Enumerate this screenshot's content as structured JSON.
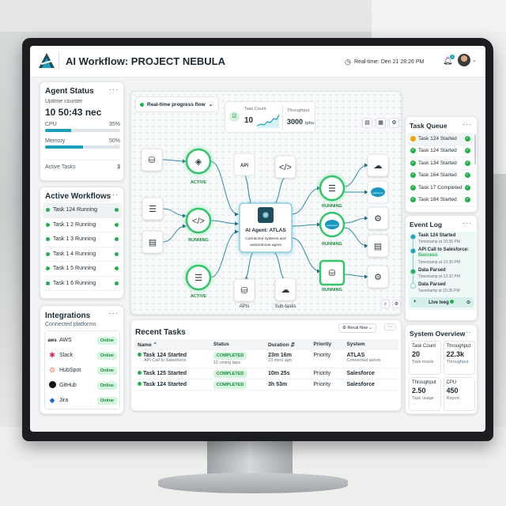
{
  "header": {
    "title": "AI Workflow: PROJECT NEBULA",
    "realtime": "Real-time: Den 21 28:26 PM",
    "notification_count": "1"
  },
  "agent_status": {
    "title": "Agent Status",
    "uptime_label": "Uptime counter",
    "uptime": "10 50:43 nec",
    "cpu_label": "CPU",
    "cpu_value": "35%",
    "cpu_pct": 35,
    "memory_label": "Memory",
    "memory_value": "50%",
    "memory_pct": 50,
    "active_tasks_label": "Active Tasks",
    "active_tasks": "3"
  },
  "active_workflows": {
    "title": "Active Workflows",
    "items": [
      "Task 124 Running",
      "Task 1 2 Running",
      "Task 1 3 Running",
      "Task 1 4 Running",
      "Task 1 5 Running",
      "Task 1 6 Running"
    ]
  },
  "integrations": {
    "title": "Integrations",
    "subtitle": "Connected platforms",
    "items": [
      {
        "name": "AWS",
        "logo": "aws",
        "status": "Online"
      },
      {
        "name": "Slack",
        "logo": "slack",
        "status": "Online"
      },
      {
        "name": "HubSpot",
        "logo": "hubspot",
        "status": "Online"
      },
      {
        "name": "GitHub",
        "logo": "github",
        "status": "Online"
      },
      {
        "name": "Jira",
        "logo": "jira",
        "status": "Online"
      }
    ]
  },
  "flow": {
    "dropdown": "Real-time progress flow",
    "task_count_label": "Task Count",
    "task_count": "10",
    "throughput_label": "Throughput",
    "throughput": "3000",
    "throughput_unit": "tphs",
    "agent_title": "AI Agent: ATLAS",
    "agent_subtitle_1": "Connected systems and",
    "agent_subtitle_2": "autonomous agent",
    "label_active": "ACTIVE",
    "label_running": "RUNNING",
    "api_text": "API",
    "apis_label": "APIs",
    "subtasks_label": "Sub-tasks",
    "salesforce_text": "salesforce"
  },
  "recent_tasks": {
    "title": "Recent Tasks",
    "filter": "Recal flow",
    "columns": [
      "Name",
      "Status",
      "Duration",
      "Priority",
      "System"
    ],
    "rows": [
      {
        "name": "Task 124 Started",
        "sub": "API Call to Salesforce",
        "status": "COMPLETED",
        "status_sub": "12 cming taps",
        "duration": "23m 16m",
        "duration_sub": "23 mins ago",
        "priority": "Priority",
        "system": "ATLAS",
        "system_sub": "Connected aslom"
      },
      {
        "name": "Task 125 Started",
        "status": "COMPLETED",
        "duration": "10m 25s",
        "priority": "Priority",
        "system": "Salesforce"
      },
      {
        "name": "Task 124 Started",
        "status": "COMPLETED",
        "duration": "3h 53m",
        "priority": "Priority",
        "system": "Salesforce"
      }
    ]
  },
  "task_queue": {
    "title": "Task Queue",
    "items": [
      {
        "label": "Task 124 Started",
        "state": "pending"
      },
      {
        "label": "Task 124 Started",
        "state": "done"
      },
      {
        "label": "Task 134 Started",
        "state": "done"
      },
      {
        "label": "Task 164 Started",
        "state": "done"
      },
      {
        "label": "Task 17 Completed",
        "state": "done"
      },
      {
        "label": "Task 184 Started",
        "state": "done"
      }
    ]
  },
  "event_log": {
    "title": "Event Log",
    "items": [
      {
        "title": "Task 124 Started",
        "time": "Timestamp at 10:35 PM"
      },
      {
        "title": "API Call to Salesforce:",
        "success": "Success",
        "time": "Timestamp at 10:35 PM"
      },
      {
        "title": "Data Parsed",
        "time": "Timestamp at 13:32 PM"
      },
      {
        "title": "Data Parsed",
        "time": "Taxestamp at 10:35 PM"
      }
    ],
    "live": "Live leeg"
  },
  "system_overview": {
    "title": "System Overview",
    "tiles": [
      {
        "label": "Task Count",
        "value": "20",
        "sub": "Task toxets"
      },
      {
        "label": "Throughput",
        "value": "22.3k",
        "sub": "Throughput"
      },
      {
        "label": "Throughput",
        "value": "2.50",
        "sub": "Task usage"
      },
      {
        "label": "CPU",
        "value": "450",
        "sub": "Report"
      }
    ]
  },
  "colors": {
    "accent": "#1aa0b8",
    "success": "#22b04b",
    "pending": "#f0a500",
    "dark_teal": "#1f4d5a"
  }
}
